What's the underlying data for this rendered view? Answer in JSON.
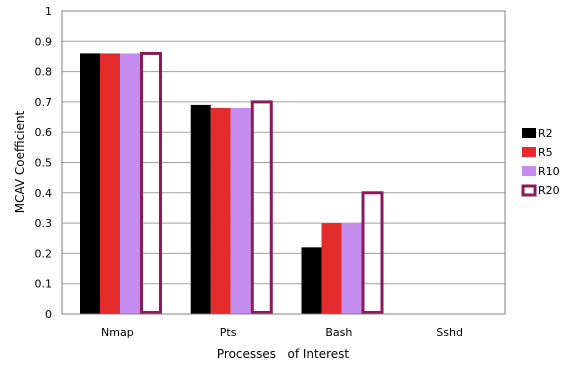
{
  "chart_data": {
    "type": "bar",
    "title": "",
    "xlabel": "Processes   of Interest",
    "ylabel": "MCAV Coefficient",
    "ylim": [
      0,
      1
    ],
    "yticks": [
      "0",
      "0.1",
      "0.2",
      "0.3",
      "0.4",
      "0.5",
      "0.6",
      "0.7",
      "0.8",
      "0.9",
      "1"
    ],
    "categories": [
      "Nmap",
      "Pts",
      "Bash",
      "Sshd"
    ],
    "grid": true,
    "legend_position": "right",
    "series": [
      {
        "name": "R2",
        "values": [
          0.86,
          0.69,
          0.22,
          0
        ],
        "color": "#000000",
        "style": "filled"
      },
      {
        "name": "R5",
        "values": [
          0.86,
          0.68,
          0.3,
          0
        ],
        "color": "#e32b2b",
        "style": "filled"
      },
      {
        "name": "R10",
        "values": [
          0.86,
          0.68,
          0.3,
          0
        ],
        "color": "#c58cf0",
        "style": "filled"
      },
      {
        "name": "R20",
        "values": [
          0.86,
          0.7,
          0.4,
          0
        ],
        "color": "#8b1a5a",
        "style": "outline"
      }
    ]
  }
}
